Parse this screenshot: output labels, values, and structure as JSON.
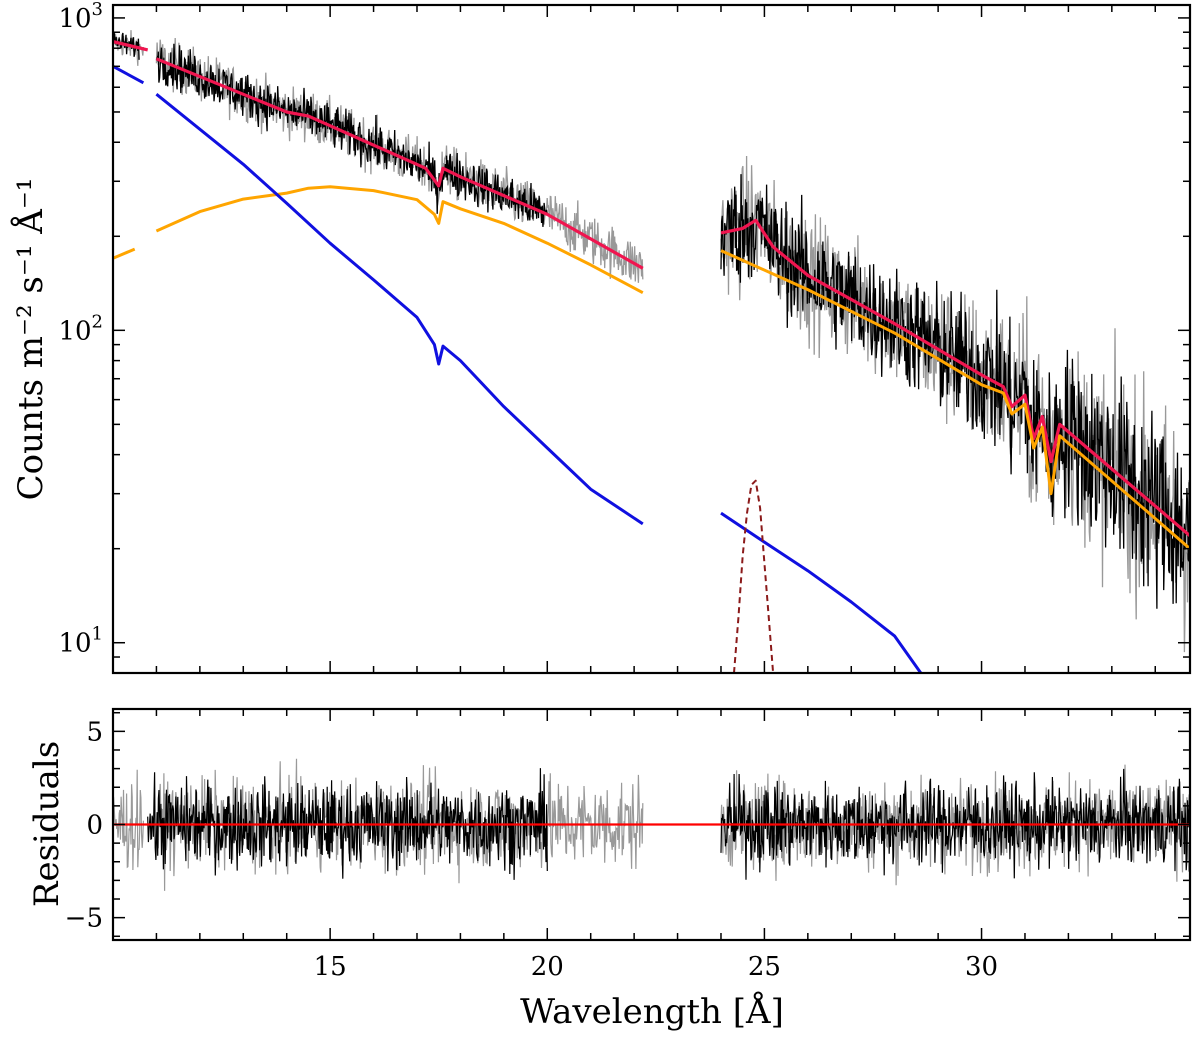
{
  "chart_data": [
    {
      "type": "line",
      "panel": "spectrum",
      "xlim": [
        10,
        34.8
      ],
      "ylim": [
        8,
        1100
      ],
      "yscale": "log",
      "ylabel": "Counts m⁻² s⁻¹ Å⁻¹",
      "xlabel": "",
      "yticks": [
        {
          "value": 10,
          "base": "10",
          "exp": "1"
        },
        {
          "value": 100,
          "base": "10",
          "exp": "2"
        },
        {
          "value": 1000,
          "base": "10",
          "exp": "3"
        }
      ],
      "series": [
        {
          "name": "data-gray",
          "color": "#999999",
          "kind": "noisy",
          "segments": [
            {
              "x": [
                10.0,
                10.7
              ],
              "y": [
                870,
                820
              ],
              "noise": 0.05
            },
            {
              "x": [
                11.0,
                22.2
              ],
              "y": [
                740,
                155
              ],
              "noise": 0.09
            },
            {
              "x": [
                24.0,
                34.8
              ],
              "y": [
                205,
                22
              ],
              "noise": 0.22
            }
          ]
        },
        {
          "name": "data-black",
          "color": "#000000",
          "kind": "noisy",
          "segments": [
            {
              "x": [
                10.0,
                10.6
              ],
              "y": [
                880,
                830
              ],
              "noise": 0.04
            },
            {
              "x": [
                11.0,
                20.0
              ],
              "y": [
                750,
                230
              ],
              "noise": 0.08
            },
            {
              "x": [
                24.0,
                34.8
              ],
              "y": [
                205,
                22
              ],
              "noise": 0.2
            }
          ]
        },
        {
          "name": "total-model",
          "color": "#f0154f",
          "width": 3.2,
          "segments": [
            {
              "x": [
                10.0,
                10.8
              ],
              "y": [
                840,
                790
              ]
            },
            {
              "x": [
                11.0,
                14.0,
                14.5,
                17.2,
                17.5,
                17.6,
                18.0,
                20.0,
                22.2
              ],
              "y": [
                740,
                500,
                485,
                330,
                290,
                330,
                310,
                235,
                158
              ]
            },
            {
              "x": [
                24.0,
                24.5,
                24.8,
                25.2,
                26.0,
                28.0,
                30.0,
                30.5,
                30.7,
                31.0,
                31.2,
                31.4,
                31.6,
                31.8,
                34.8
              ],
              "y": [
                205,
                212,
                225,
                185,
                150,
                105,
                72,
                66,
                57,
                62,
                45,
                53,
                38,
                50,
                22
              ]
            }
          ]
        },
        {
          "name": "orange-component",
          "color": "#ffa500",
          "width": 3,
          "segments": [
            {
              "x": [
                10.0,
                10.5
              ],
              "y": [
                170,
                182
              ]
            },
            {
              "x": [
                11.0,
                12.0,
                13.0,
                14.0,
                14.5,
                15.0,
                16.0,
                17.0,
                17.4,
                17.5,
                17.6,
                18.0,
                19.0,
                20.0,
                21.0,
                22.2
              ],
              "y": [
                208,
                240,
                263,
                275,
                285,
                288,
                280,
                262,
                235,
                220,
                258,
                245,
                220,
                190,
                162,
                132
              ]
            },
            {
              "x": [
                24.0,
                26.0,
                28.0,
                30.0,
                30.5,
                30.7,
                31.0,
                31.2,
                31.4,
                31.6,
                31.8,
                34.8
              ],
              "y": [
                180,
                135,
                98,
                67,
                63,
                54,
                58,
                42,
                49,
                30,
                46,
                20
              ]
            }
          ]
        },
        {
          "name": "blue-component",
          "color": "#1010e0",
          "width": 3,
          "segments": [
            {
              "x": [
                10.0,
                10.7
              ],
              "y": [
                700,
                620
              ]
            },
            {
              "x": [
                11.0,
                13.0,
                14.0,
                15.0,
                16.0,
                17.0,
                17.4,
                17.5,
                17.6,
                18.0,
                19.0,
                20.0,
                21.0,
                22.2
              ],
              "y": [
                570,
                340,
                255,
                190,
                145,
                110,
                90,
                78,
                89,
                80,
                57,
                42,
                31,
                24
              ]
            },
            {
              "x": [
                24.0,
                25.0,
                26.0,
                27.0,
                28.0,
                28.6
              ],
              "y": [
                26,
                21,
                17,
                13.5,
                10.5,
                8
              ]
            }
          ]
        },
        {
          "name": "gaussian-line",
          "color": "#8b1a1a",
          "width": 2,
          "dash": true,
          "segments": [
            {
              "x": [
                24.3,
                24.4,
                24.5,
                24.6,
                24.7,
                24.8,
                24.9,
                25.0,
                25.1,
                25.2
              ],
              "y": [
                8,
                12,
                19,
                26,
                32,
                33,
                27,
                18,
                12,
                8
              ]
            }
          ]
        }
      ]
    },
    {
      "type": "line",
      "panel": "residuals",
      "xlim": [
        10,
        34.8
      ],
      "ylim": [
        -6.2,
        6.2
      ],
      "ylabel": "Residuals",
      "xlabel": "Wavelength [Å]",
      "xticks": [
        15,
        20,
        25,
        30
      ],
      "yticks": [
        -5,
        0,
        5
      ],
      "series": [
        {
          "name": "residual-gray",
          "color": "#999999",
          "kind": "noise",
          "segments": [
            [
              10.0,
              10.7
            ],
            [
              11.0,
              22.2
            ],
            [
              24.0,
              34.8
            ]
          ],
          "amplitude": 1.6
        },
        {
          "name": "residual-black",
          "color": "#000000",
          "kind": "noise",
          "segments": [
            [
              10.8,
              20.0
            ],
            [
              24.0,
              34.8
            ]
          ],
          "amplitude": 1.5
        },
        {
          "name": "zero-line",
          "color": "#ff0000",
          "kind": "constant",
          "value": 0,
          "x": [
            10,
            34.8
          ]
        }
      ]
    }
  ]
}
